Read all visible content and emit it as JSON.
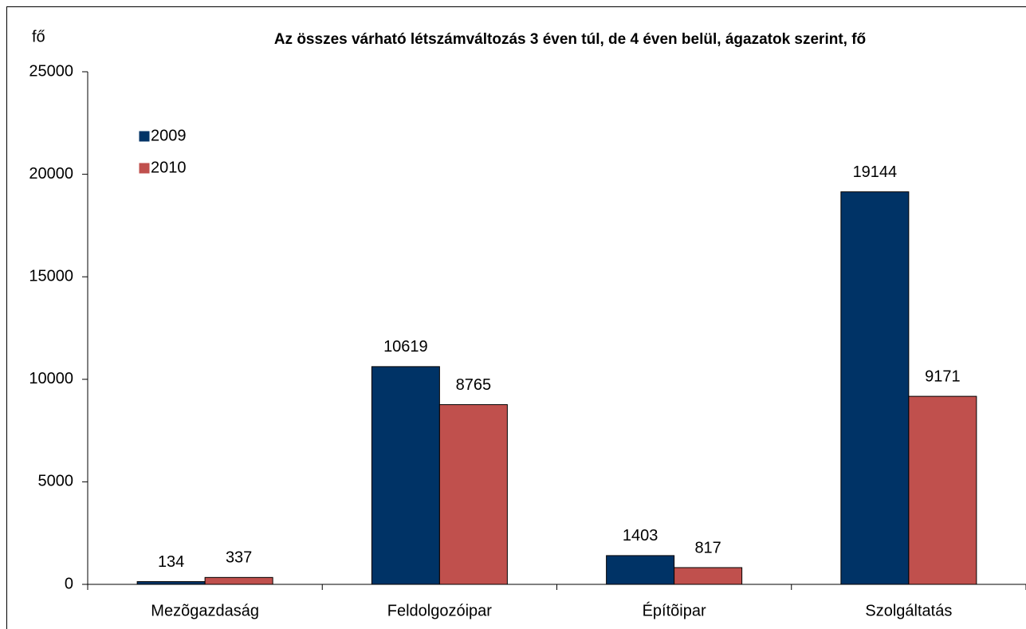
{
  "chart_data": {
    "type": "bar",
    "title": "Az összes várható létszámváltozás  3 éven túl, de 4 éven belül, ágazatok szerint, fő",
    "y_label": "fő",
    "categories": [
      "Mezõgazdaság",
      "Feldolgozóipar",
      "Építõipar",
      "Szolgáltatás"
    ],
    "series": [
      {
        "name": "2009",
        "color": "#003366",
        "values": [
          134,
          10619,
          1403,
          19144
        ]
      },
      {
        "name": "2010",
        "color": "#c0504d",
        "values": [
          337,
          8765,
          817,
          9171
        ]
      }
    ],
    "ylim": [
      0,
      25000
    ],
    "yticks": [
      0,
      5000,
      10000,
      15000,
      20000,
      25000
    ],
    "grid": false,
    "legend": "upper left"
  }
}
